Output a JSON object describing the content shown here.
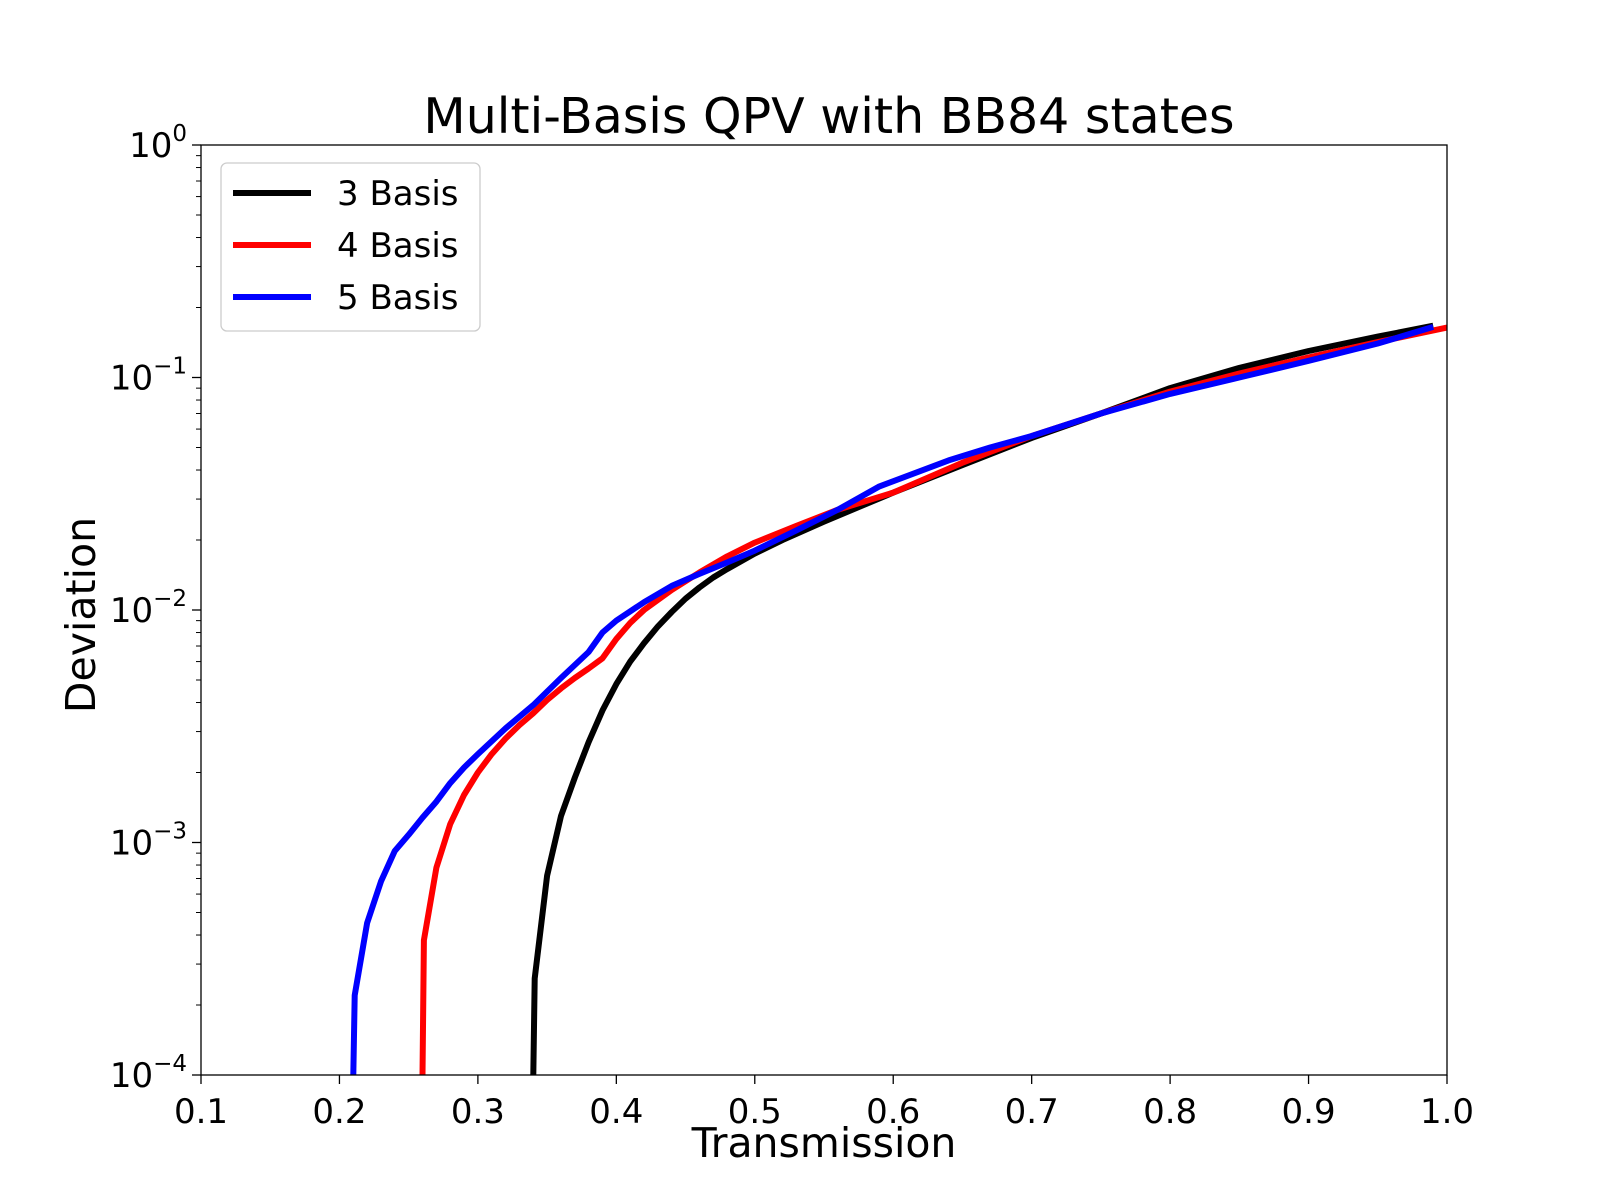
{
  "chart_data": {
    "type": "line",
    "title": "Multi-Basis QPV with BB84 states",
    "xlabel": "Transmission",
    "ylabel": "Deviation",
    "xlim": [
      0.1,
      1.0
    ],
    "ylim": [
      0.0001,
      1
    ],
    "yscale": "log",
    "grid": false,
    "legend_position": "top-left",
    "x_ticks": [
      "0.1",
      "0.2",
      "0.3",
      "0.4",
      "0.5",
      "0.6",
      "0.7",
      "0.8",
      "0.9",
      "1.0"
    ],
    "y_ticks": [
      {
        "base": "10",
        "exp": "−4"
      },
      {
        "base": "10",
        "exp": "−3"
      },
      {
        "base": "10",
        "exp": "−2"
      },
      {
        "base": "10",
        "exp": "−1"
      },
      {
        "base": "10",
        "exp": "0"
      }
    ],
    "series": [
      {
        "name": "3 Basis",
        "color": "#000000",
        "x": [
          0.34,
          0.341,
          0.35,
          0.36,
          0.37,
          0.38,
          0.39,
          0.4,
          0.41,
          0.42,
          0.43,
          0.44,
          0.45,
          0.46,
          0.47,
          0.48,
          0.5,
          0.52,
          0.55,
          0.6,
          0.65,
          0.7,
          0.75,
          0.8,
          0.85,
          0.9,
          0.95,
          0.99
        ],
        "y": [
          0.0001,
          0.00026,
          0.00072,
          0.0013,
          0.0019,
          0.0027,
          0.0037,
          0.0048,
          0.006,
          0.0072,
          0.0085,
          0.0098,
          0.0112,
          0.0125,
          0.0138,
          0.015,
          0.0175,
          0.02,
          0.024,
          0.032,
          0.042,
          0.055,
          0.07,
          0.09,
          0.11,
          0.13,
          0.15,
          0.167
        ]
      },
      {
        "name": "4 Basis",
        "color": "#ff0000",
        "x": [
          0.26,
          0.261,
          0.27,
          0.28,
          0.29,
          0.3,
          0.31,
          0.32,
          0.33,
          0.34,
          0.35,
          0.36,
          0.37,
          0.38,
          0.39,
          0.4,
          0.41,
          0.42,
          0.44,
          0.46,
          0.48,
          0.5,
          0.53,
          0.56,
          0.6,
          0.65,
          0.7,
          0.75,
          0.8,
          0.85,
          0.9,
          0.95,
          1.0
        ],
        "y": [
          0.0001,
          0.00038,
          0.00078,
          0.0012,
          0.0016,
          0.002,
          0.0024,
          0.0028,
          0.0032,
          0.0036,
          0.0041,
          0.0046,
          0.0051,
          0.0056,
          0.0062,
          0.0075,
          0.0088,
          0.01,
          0.0122,
          0.0145,
          0.017,
          0.0195,
          0.023,
          0.027,
          0.032,
          0.043,
          0.056,
          0.07,
          0.087,
          0.104,
          0.122,
          0.142,
          0.164
        ]
      },
      {
        "name": "5 Basis",
        "color": "#0000ff",
        "x": [
          0.21,
          0.211,
          0.22,
          0.23,
          0.24,
          0.25,
          0.26,
          0.27,
          0.28,
          0.29,
          0.3,
          0.32,
          0.34,
          0.36,
          0.38,
          0.39,
          0.4,
          0.42,
          0.44,
          0.46,
          0.48,
          0.5,
          0.53,
          0.56,
          0.59,
          0.64,
          0.67,
          0.7,
          0.75,
          0.8,
          0.85,
          0.9,
          0.95,
          0.99
        ],
        "y": [
          0.0001,
          0.00022,
          0.00045,
          0.00068,
          0.00092,
          0.00108,
          0.00128,
          0.0015,
          0.0018,
          0.0021,
          0.0024,
          0.0031,
          0.0039,
          0.0051,
          0.0066,
          0.008,
          0.009,
          0.0108,
          0.0127,
          0.0143,
          0.016,
          0.018,
          0.022,
          0.027,
          0.034,
          0.044,
          0.05,
          0.056,
          0.07,
          0.085,
          0.1,
          0.118,
          0.14,
          0.165
        ]
      }
    ]
  }
}
